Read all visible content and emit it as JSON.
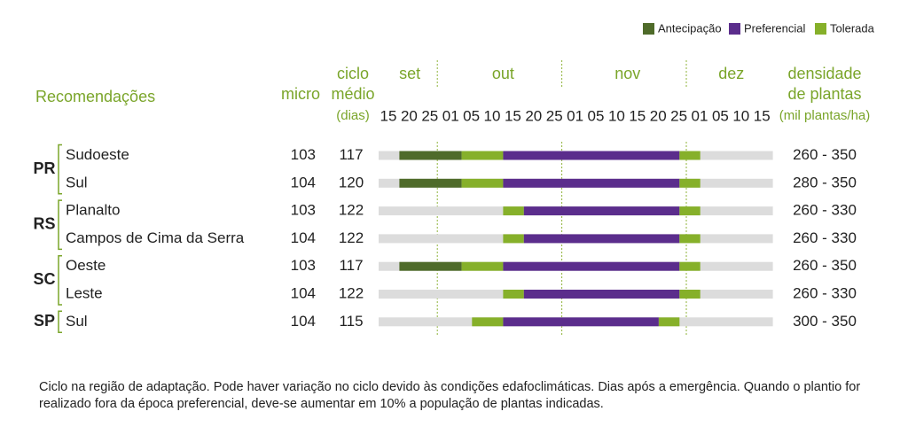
{
  "colors": {
    "antecipacao": "#4f6b2a",
    "preferencial": "#5b2d8c",
    "tolerada": "#86b02a",
    "background_bar": "#dcdcdc",
    "header_green": "#7aa52a",
    "guide": "#8fb33a"
  },
  "chart_data": {
    "type": "gantt",
    "legend": [
      {
        "key": "antecipacao",
        "label": "Antecipação"
      },
      {
        "key": "preferencial",
        "label": "Preferencial"
      },
      {
        "key": "tolerada",
        "label": "Tolerada"
      }
    ],
    "legend_position": "top-right",
    "headers": {
      "recomendacoes": "Recomendações",
      "micro": "micro",
      "ciclo_line1": "ciclo",
      "ciclo_line2": "médio",
      "ciclo_line3": "(dias)",
      "densidade_line1": "densidade",
      "densidade_line2": "de plantas",
      "densidade_line3": "(mil plantas/ha)"
    },
    "months": [
      {
        "label": "set",
        "start": 0,
        "end": 3
      },
      {
        "label": "out",
        "start": 3,
        "end": 9
      },
      {
        "label": "nov",
        "start": 9,
        "end": 15
      },
      {
        "label": "dez",
        "start": 15,
        "end": 19
      }
    ],
    "ticks": [
      "15",
      "20",
      "25",
      "01",
      "05",
      "10",
      "15",
      "20",
      "25",
      "01",
      "05",
      "10",
      "15",
      "20",
      "25",
      "01",
      "05",
      "10",
      "15"
    ],
    "groups": [
      {
        "state": "PR",
        "rows": [
          0,
          1
        ]
      },
      {
        "state": "RS",
        "rows": [
          2,
          3
        ]
      },
      {
        "state": "SC",
        "rows": [
          4,
          5
        ]
      },
      {
        "state": "SP",
        "rows": [
          6
        ]
      }
    ],
    "rows": [
      {
        "region": "Sudoeste",
        "micro": "103",
        "ciclo": "117",
        "densidade": "260 - 350",
        "segments": [
          {
            "type": "antecipacao",
            "from": 1,
            "to": 4
          },
          {
            "type": "tolerada",
            "from": 4,
            "to": 6
          },
          {
            "type": "preferencial",
            "from": 6,
            "to": 14.5
          },
          {
            "type": "tolerada",
            "from": 14.5,
            "to": 15.5
          }
        ]
      },
      {
        "region": "Sul",
        "micro": "104",
        "ciclo": "120",
        "densidade": "280 - 350",
        "segments": [
          {
            "type": "antecipacao",
            "from": 1,
            "to": 4
          },
          {
            "type": "tolerada",
            "from": 4,
            "to": 6
          },
          {
            "type": "preferencial",
            "from": 6,
            "to": 14.5
          },
          {
            "type": "tolerada",
            "from": 14.5,
            "to": 15.5
          }
        ]
      },
      {
        "region": "Planalto",
        "micro": "103",
        "ciclo": "122",
        "densidade": "260 - 330",
        "segments": [
          {
            "type": "tolerada",
            "from": 6,
            "to": 7
          },
          {
            "type": "preferencial",
            "from": 7,
            "to": 14.5
          },
          {
            "type": "tolerada",
            "from": 14.5,
            "to": 15.5
          }
        ]
      },
      {
        "region": "Campos de Cima da Serra",
        "micro": "104",
        "ciclo": "122",
        "densidade": "260 - 330",
        "segments": [
          {
            "type": "tolerada",
            "from": 6,
            "to": 7
          },
          {
            "type": "preferencial",
            "from": 7,
            "to": 14.5
          },
          {
            "type": "tolerada",
            "from": 14.5,
            "to": 15.5
          }
        ]
      },
      {
        "region": "Oeste",
        "micro": "103",
        "ciclo": "117",
        "densidade": "260 - 350",
        "segments": [
          {
            "type": "antecipacao",
            "from": 1,
            "to": 4
          },
          {
            "type": "tolerada",
            "from": 4,
            "to": 6
          },
          {
            "type": "preferencial",
            "from": 6,
            "to": 14.5
          },
          {
            "type": "tolerada",
            "from": 14.5,
            "to": 15.5
          }
        ]
      },
      {
        "region": "Leste",
        "micro": "104",
        "ciclo": "122",
        "densidade": "260 - 330",
        "segments": [
          {
            "type": "tolerada",
            "from": 6,
            "to": 7
          },
          {
            "type": "preferencial",
            "from": 7,
            "to": 14.5
          },
          {
            "type": "tolerada",
            "from": 14.5,
            "to": 15.5
          }
        ]
      },
      {
        "region": "Sul",
        "micro": "104",
        "ciclo": "115",
        "densidade": "300 - 350",
        "segments": [
          {
            "type": "tolerada",
            "from": 4.5,
            "to": 6
          },
          {
            "type": "preferencial",
            "from": 6,
            "to": 13.5
          },
          {
            "type": "tolerada",
            "from": 13.5,
            "to": 14.5
          }
        ]
      }
    ]
  },
  "footnote": "Ciclo na região de adaptação. Pode haver variação no ciclo devido às condições edafoclimáticas. Dias após a emergência. Quando o plantio for realizado fora da época preferencial, deve-se aumentar em 10% a população de plantas indicadas."
}
